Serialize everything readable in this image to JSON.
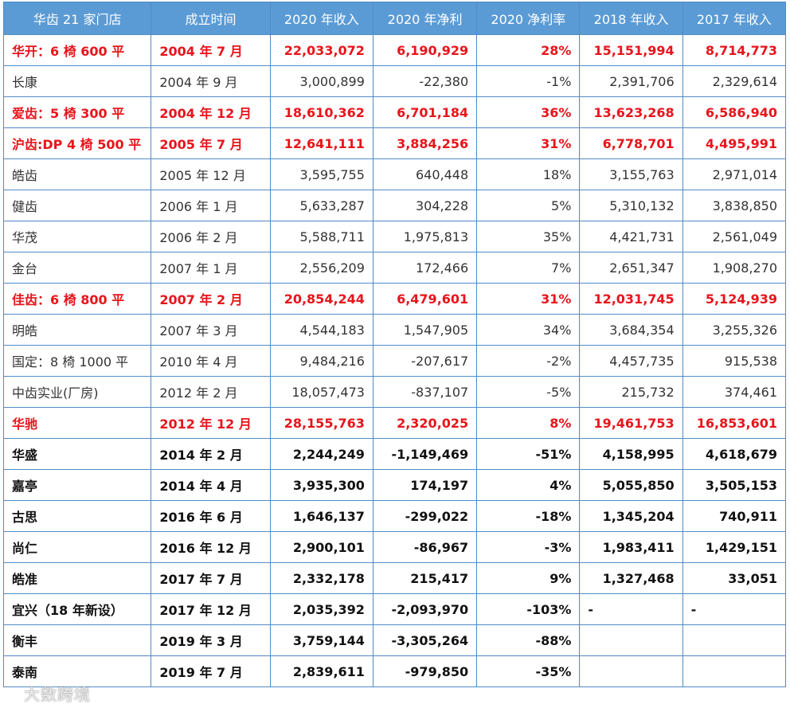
{
  "table": {
    "header": [
      "华齿 21 家门店",
      "成立时间",
      "2020 年收入",
      "2020 年净利",
      "2020 净利率",
      "2018 年收入",
      "2017 年收入"
    ],
    "rows": [
      {
        "style": "red",
        "cells": [
          "华开：6 椅 600 平",
          "2004 年 7 月",
          "22,033,072",
          "6,190,929",
          "28%",
          "15,151,994",
          "8,714,773"
        ]
      },
      {
        "style": "normal",
        "cells": [
          "长康",
          "2004 年 9 月",
          "3,000,899",
          "-22,380",
          "-1%",
          "2,391,706",
          "2,329,614"
        ]
      },
      {
        "style": "red",
        "cells": [
          "爱齿：5 椅 300 平",
          "2004 年 12 月",
          "18,610,362",
          "6,701,184",
          "36%",
          "13,623,268",
          "6,586,940"
        ]
      },
      {
        "style": "red",
        "cells": [
          "沪齿:DP 4 椅 500 平",
          "2005 年 7 月",
          "12,641,111",
          "3,884,256",
          "31%",
          "6,778,701",
          "4,495,991"
        ]
      },
      {
        "style": "normal",
        "cells": [
          "皓齿",
          "2005 年 12 月",
          "3,595,755",
          "640,448",
          "18%",
          "3,155,763",
          "2,971,014"
        ]
      },
      {
        "style": "normal",
        "cells": [
          "健齿",
          "2006 年 1 月",
          "5,633,287",
          "304,228",
          "5%",
          "5,310,132",
          "3,838,850"
        ]
      },
      {
        "style": "normal",
        "cells": [
          "华茂",
          "2006 年 2 月",
          "5,588,711",
          "1,975,813",
          "35%",
          "4,421,731",
          "2,561,049"
        ]
      },
      {
        "style": "normal",
        "cells": [
          "金台",
          "2007 年 1 月",
          "2,556,209",
          "172,466",
          "7%",
          "2,651,347",
          "1,908,270"
        ]
      },
      {
        "style": "red",
        "cells": [
          "佳齿：6 椅 800 平",
          "2007 年 2 月",
          "20,854,244",
          "6,479,601",
          "31%",
          "12,031,745",
          "5,124,939"
        ]
      },
      {
        "style": "normal",
        "cells": [
          "明皓",
          "2007 年 3 月",
          "4,544,183",
          "1,547,905",
          "34%",
          "3,684,354",
          "3,255,326"
        ]
      },
      {
        "style": "normal",
        "cells": [
          "国定：8 椅 1000 平",
          "2010 年 4 月",
          "9,484,216",
          "-207,617",
          "-2%",
          "4,457,735",
          "915,538"
        ]
      },
      {
        "style": "normal",
        "cells": [
          "中齿实业(厂房)",
          "2012 年 2 月",
          "18,057,473",
          "-837,107",
          "-5%",
          "215,732",
          "374,461"
        ]
      },
      {
        "style": "red",
        "cells": [
          "华驰",
          "2012 年 12 月",
          "28,155,763",
          "2,320,025",
          "8%",
          "19,461,753",
          "16,853,601"
        ]
      },
      {
        "style": "bold",
        "cells": [
          "华盛",
          "2014 年 2 月",
          "2,244,249",
          "-1,149,469",
          "-51%",
          "4,158,995",
          "4,618,679"
        ]
      },
      {
        "style": "bold",
        "cells": [
          "嘉亭",
          "2014 年 4 月",
          "3,935,300",
          "174,197",
          "4%",
          "5,055,850",
          "3,505,153"
        ]
      },
      {
        "style": "bold",
        "cells": [
          "古思",
          "2016 年 6 月",
          "1,646,137",
          "-299,022",
          "-18%",
          "1,345,204",
          "740,911"
        ]
      },
      {
        "style": "bold",
        "cells": [
          "尚仁",
          "2016 年 12 月",
          "2,900,101",
          "-86,967",
          "-3%",
          "1,983,411",
          "1,429,151"
        ]
      },
      {
        "style": "bold",
        "cells": [
          "皓准",
          "2017 年 7 月",
          "2,332,178",
          "215,417",
          "9%",
          "1,327,468",
          "33,051"
        ]
      },
      {
        "style": "bold",
        "cells": [
          "宜兴（18 年新设）",
          "2017 年 12 月",
          "2,035,392",
          "-2,093,970",
          "-103%",
          "-",
          "-"
        ]
      },
      {
        "style": "bold",
        "cells": [
          "衡丰",
          "2019 年 3 月",
          "3,759,144",
          "-3,305,264",
          "-88%"
        ]
      },
      {
        "style": "bold",
        "cells": [
          "泰南",
          "2019 年 7 月",
          "2,839,611",
          "-979,850",
          "-35%"
        ]
      }
    ]
  },
  "watermark": "大数跨境"
}
